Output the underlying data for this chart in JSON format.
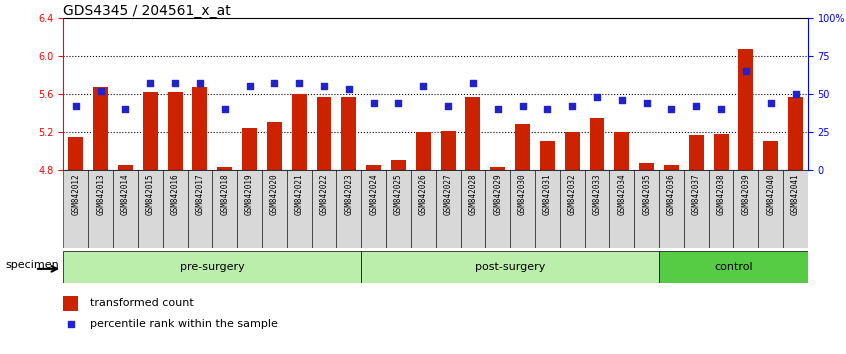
{
  "title": "GDS4345 / 204561_x_at",
  "samples": [
    "GSM842012",
    "GSM842013",
    "GSM842014",
    "GSM842015",
    "GSM842016",
    "GSM842017",
    "GSM842018",
    "GSM842019",
    "GSM842020",
    "GSM842021",
    "GSM842022",
    "GSM842023",
    "GSM842024",
    "GSM842025",
    "GSM842026",
    "GSM842027",
    "GSM842028",
    "GSM842029",
    "GSM842030",
    "GSM842031",
    "GSM842032",
    "GSM842033",
    "GSM842034",
    "GSM842035",
    "GSM842036",
    "GSM842037",
    "GSM842038",
    "GSM842039",
    "GSM842040",
    "GSM842041"
  ],
  "bar_values": [
    5.15,
    5.67,
    4.85,
    5.62,
    5.62,
    5.67,
    4.83,
    5.24,
    5.3,
    5.6,
    5.57,
    5.57,
    4.85,
    4.9,
    5.2,
    5.21,
    5.57,
    4.83,
    5.28,
    5.1,
    5.2,
    5.35,
    5.2,
    4.87,
    4.85,
    5.17,
    5.18,
    6.07,
    5.1,
    5.57
  ],
  "percentile_values": [
    42,
    52,
    40,
    57,
    57,
    57,
    40,
    55,
    57,
    57,
    55,
    53,
    44,
    44,
    55,
    42,
    57,
    40,
    42,
    40,
    42,
    48,
    46,
    44,
    40,
    42,
    40,
    65,
    44,
    50
  ],
  "ylim_left": [
    4.8,
    6.4
  ],
  "ylim_right": [
    0,
    100
  ],
  "yticks_left": [
    4.8,
    5.2,
    5.6,
    6.0,
    6.4
  ],
  "yticks_right": [
    0,
    25,
    50,
    75,
    100
  ],
  "ytick_labels_right": [
    "0",
    "25",
    "50",
    "75",
    "100%"
  ],
  "grid_values": [
    6.0,
    5.6,
    5.2
  ],
  "bar_color": "#cc2200",
  "dot_color": "#2222cc",
  "bg_color_plot": "#ffffff",
  "bg_color_fig": "#ffffff",
  "xtick_bg_color": "#d8d8d8",
  "group_labels": [
    "pre-surgery",
    "post-surgery",
    "control"
  ],
  "group_ranges": [
    [
      0,
      11
    ],
    [
      12,
      23
    ],
    [
      24,
      29
    ]
  ],
  "group_color_light": "#bbeeaa",
  "group_color_dark": "#55cc44",
  "specimen_label": "specimen",
  "legend_bar_label": "transformed count",
  "legend_dot_label": "percentile rank within the sample",
  "title_fontsize": 10,
  "tick_fontsize": 7,
  "label_fontsize": 8
}
